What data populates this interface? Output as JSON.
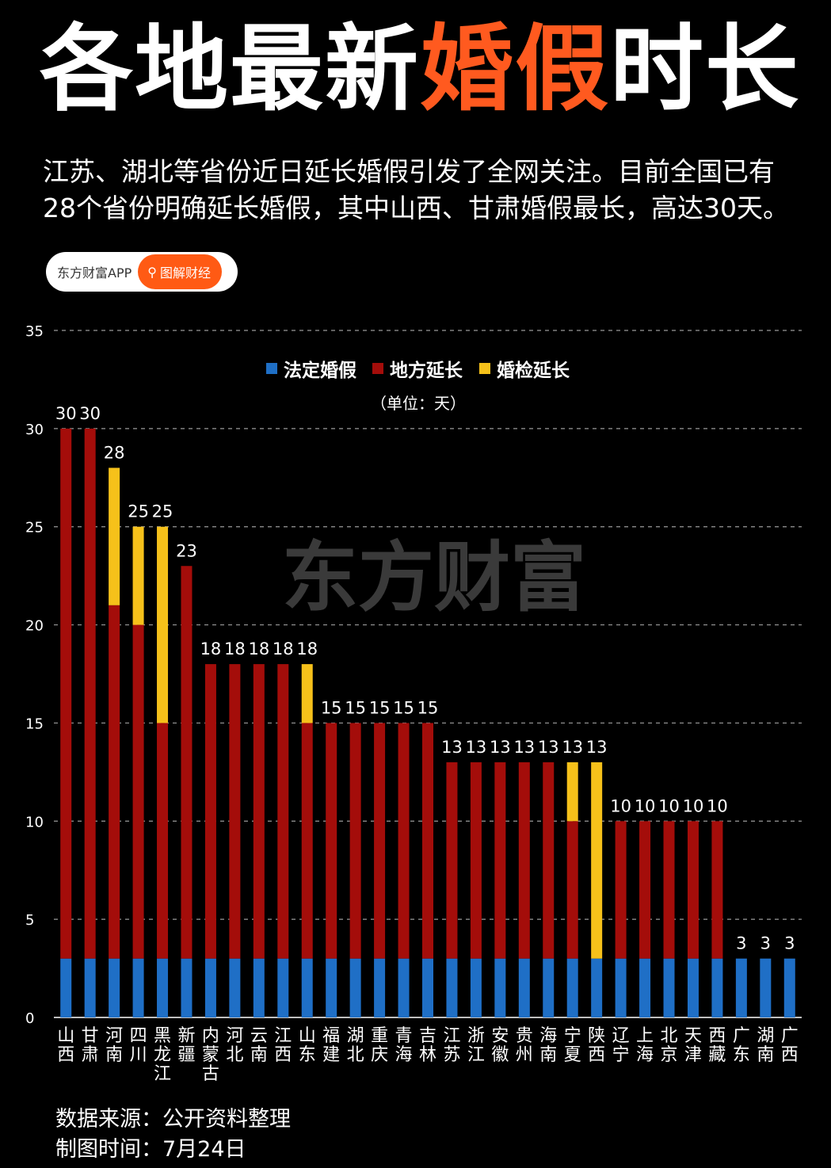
{
  "header": {
    "title_part1": "各地最新",
    "title_accent": "婚假",
    "title_part2": "时长",
    "intro": "江苏、湖北等省份近日延长婚假引发了全网关注。目前全国已有28个省份明确延长婚假，其中山西、甘肃婚假最长，高达30天。"
  },
  "brand": {
    "name": "东方财富APP",
    "tag": "图解财经",
    "watermark": "东方财富"
  },
  "colors": {
    "accent": "#ff5a1f",
    "statutory": "#1f6fc6",
    "local": "#a40d0a",
    "exam": "#f6c11a",
    "grid": "#9a9a9a"
  },
  "chart_data": {
    "type": "bar",
    "stacked": true,
    "legend": [
      "法定婚假",
      "地方延长",
      "婚检延长"
    ],
    "unit_note": "（单位：天）",
    "ylim": [
      0,
      35
    ],
    "yticks": [
      0,
      5,
      10,
      15,
      20,
      25,
      30,
      35
    ],
    "categories": [
      "山西",
      "甘肃",
      "河南",
      "四川",
      "黑龙江",
      "新疆",
      "内蒙古",
      "河北",
      "云南",
      "江西",
      "山东",
      "福建",
      "湖北",
      "重庆",
      "青海",
      "吉林",
      "江苏",
      "浙江",
      "安徽",
      "贵州",
      "海南",
      "宁夏",
      "陕西",
      "辽宁",
      "上海",
      "北京",
      "天津",
      "西藏",
      "广东",
      "湖南",
      "广西"
    ],
    "series": [
      {
        "name": "法定婚假",
        "values": [
          3,
          3,
          3,
          3,
          3,
          3,
          3,
          3,
          3,
          3,
          3,
          3,
          3,
          3,
          3,
          3,
          3,
          3,
          3,
          3,
          3,
          3,
          3,
          3,
          3,
          3,
          3,
          3,
          3,
          3,
          3
        ]
      },
      {
        "name": "地方延长",
        "values": [
          27,
          27,
          18,
          17,
          12,
          20,
          15,
          15,
          15,
          15,
          12,
          12,
          12,
          12,
          12,
          12,
          10,
          10,
          10,
          10,
          10,
          7,
          0,
          7,
          7,
          7,
          7,
          7,
          0,
          0,
          0
        ]
      },
      {
        "name": "婚检延长",
        "values": [
          0,
          0,
          7,
          5,
          10,
          0,
          0,
          0,
          0,
          0,
          3,
          0,
          0,
          0,
          0,
          0,
          0,
          0,
          0,
          0,
          0,
          3,
          10,
          0,
          0,
          0,
          0,
          0,
          0,
          0,
          0
        ]
      }
    ],
    "totals": [
      30,
      30,
      28,
      25,
      25,
      23,
      18,
      18,
      18,
      18,
      18,
      15,
      15,
      15,
      15,
      15,
      13,
      13,
      13,
      13,
      13,
      13,
      13,
      10,
      10,
      10,
      10,
      10,
      3,
      3,
      3
    ]
  },
  "footer": {
    "source": "数据来源：公开资料整理",
    "date": "制图时间：7月24日"
  }
}
